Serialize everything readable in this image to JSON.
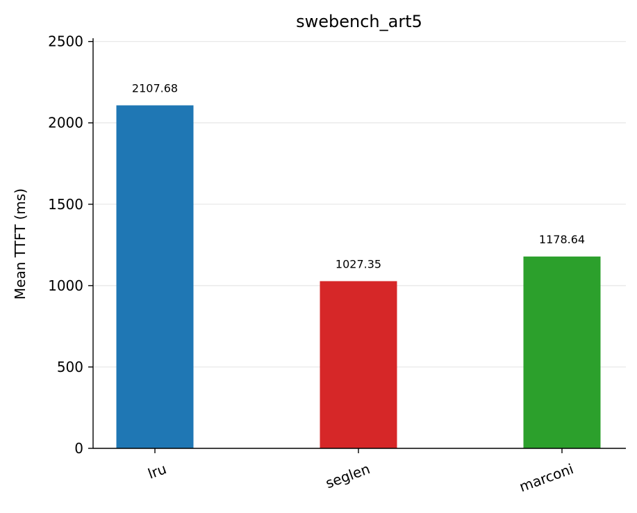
{
  "chart_data": {
    "type": "bar",
    "title": "swebench_art5",
    "xlabel": "",
    "ylabel": "Mean TTFT (ms)",
    "categories": [
      "lru",
      "seglen",
      "marconi"
    ],
    "values": [
      2107.68,
      1027.35,
      1178.64
    ],
    "value_labels": [
      "2107.68",
      "1027.35",
      "1178.64"
    ],
    "colors": [
      "#1f77b4",
      "#d62728",
      "#2ca02c"
    ],
    "ylim": [
      0,
      2520
    ],
    "yticks": [
      0,
      500,
      1000,
      1500,
      2000,
      2500
    ],
    "ytick_labels": [
      "0",
      "500",
      "1000",
      "1500",
      "2000",
      "2500"
    ],
    "grid": "y",
    "legend": "none"
  }
}
